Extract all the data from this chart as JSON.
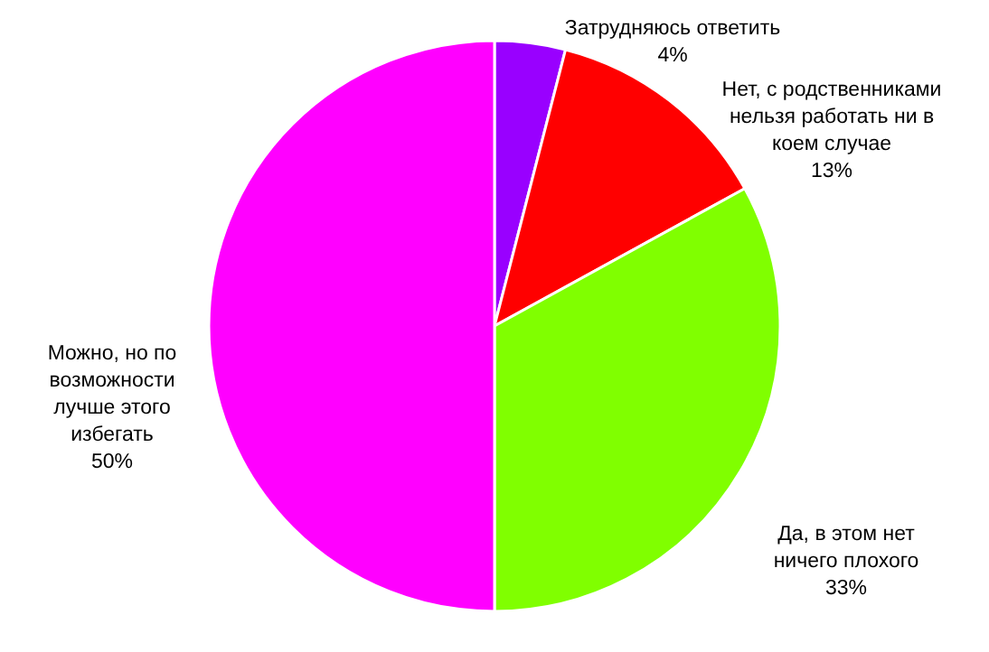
{
  "chart_data": {
    "type": "pie",
    "categories": [
      "Затрудняюсь ответить",
      "Нет, с родственниками нельзя работать ни в коем случае",
      "Да, в этом нет ничего плохого",
      "Можно, но по возможности лучше этого избегать"
    ],
    "values": [
      4,
      13,
      33,
      50
    ],
    "colors": [
      "#9900ff",
      "#ff0000",
      "#80ff00",
      "#ff00ff"
    ],
    "value_labels": [
      "4%",
      "13%",
      "33%",
      "50%"
    ]
  }
}
